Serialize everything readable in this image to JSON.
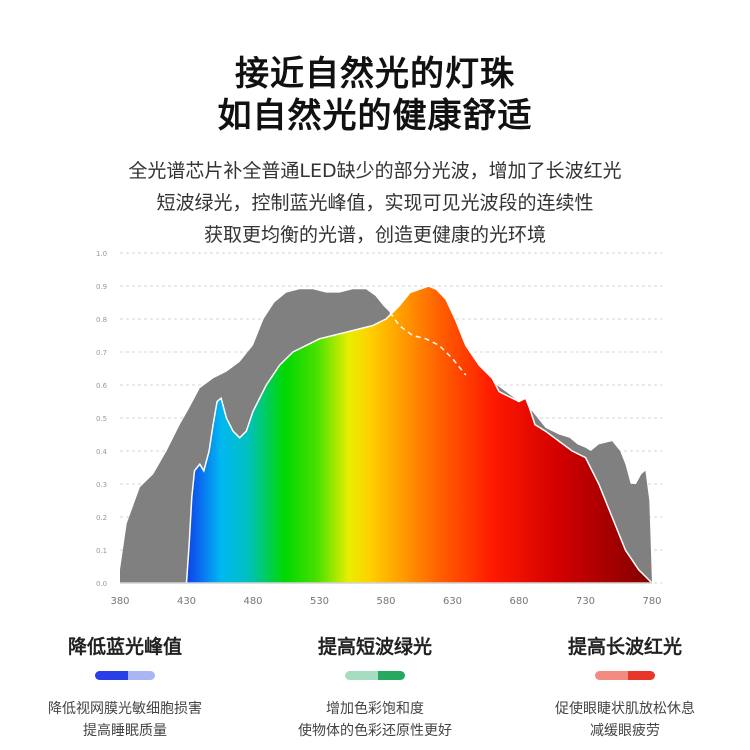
{
  "header": {
    "line1": "接近自然光的灯珠",
    "line2": "如自然光的健康舒适"
  },
  "description": {
    "line1": "全光谱芯片补全普通LED缺少的部分光波，增加了长波红光",
    "line2": "短波绿光，控制蓝光峰值，实现可见光波段的连续性",
    "line3": "获取更均衡的光谱，创造更健康的光环境"
  },
  "chart_data": {
    "type": "area",
    "title": "",
    "xlabel": "",
    "ylabel": "",
    "xlim": [
      380,
      780
    ],
    "ylim": [
      0,
      1.0
    ],
    "grid": true,
    "legend": "none",
    "x_ticks": [
      "380",
      "430",
      "480",
      "530",
      "580",
      "630",
      "680",
      "730",
      "780"
    ],
    "y_ticks": [
      "0.0",
      "0.1",
      "0.2",
      "0.3",
      "0.4",
      "0.5",
      "0.6",
      "0.7",
      "0.8",
      "0.9",
      "1.0"
    ],
    "series": [
      {
        "style": "gray-fill",
        "color": "#808080",
        "x": [
          380,
          385,
          395,
          405,
          415,
          425,
          432,
          440,
          450,
          460,
          470,
          480,
          488,
          496,
          505,
          515,
          525,
          535,
          545,
          555,
          565,
          572,
          578,
          583,
          590,
          600,
          610,
          620,
          630,
          640,
          645,
          650,
          660,
          670,
          680,
          690,
          700,
          710,
          718,
          724,
          730,
          734,
          740,
          750,
          756,
          760,
          764,
          768,
          772,
          775,
          778,
          780
        ],
        "y": [
          0.04,
          0.18,
          0.29,
          0.33,
          0.4,
          0.48,
          0.53,
          0.59,
          0.62,
          0.64,
          0.67,
          0.72,
          0.8,
          0.85,
          0.88,
          0.89,
          0.89,
          0.88,
          0.88,
          0.89,
          0.89,
          0.87,
          0.84,
          0.82,
          0.78,
          0.75,
          0.74,
          0.72,
          0.68,
          0.63,
          0.62,
          0.62,
          0.61,
          0.58,
          0.55,
          0.52,
          0.47,
          0.45,
          0.44,
          0.42,
          0.41,
          0.4,
          0.42,
          0.43,
          0.4,
          0.36,
          0.3,
          0.3,
          0.33,
          0.34,
          0.25,
          0.0
        ]
      },
      {
        "style": "spectrum-fill",
        "x": [
          380,
          430,
          432,
          434,
          436,
          438,
          440,
          443,
          447,
          450,
          453,
          456,
          460,
          465,
          470,
          475,
          480,
          490,
          500,
          510,
          520,
          530,
          540,
          550,
          560,
          570,
          575,
          580,
          590,
          598,
          605,
          612,
          618,
          625,
          632,
          640,
          650,
          660,
          665,
          670,
          675,
          680,
          685,
          688,
          692,
          700,
          710,
          720,
          730,
          740,
          750,
          760,
          770,
          780
        ],
        "y": [
          0.0,
          0.0,
          0.12,
          0.26,
          0.34,
          0.35,
          0.36,
          0.34,
          0.4,
          0.48,
          0.55,
          0.56,
          0.5,
          0.46,
          0.44,
          0.46,
          0.52,
          0.6,
          0.66,
          0.7,
          0.72,
          0.74,
          0.75,
          0.76,
          0.77,
          0.78,
          0.79,
          0.8,
          0.84,
          0.88,
          0.89,
          0.9,
          0.89,
          0.86,
          0.8,
          0.72,
          0.66,
          0.62,
          0.58,
          0.57,
          0.56,
          0.55,
          0.56,
          0.53,
          0.48,
          0.46,
          0.43,
          0.4,
          0.38,
          0.3,
          0.2,
          0.1,
          0.04,
          0.0
        ]
      },
      {
        "style": "dashed-gray-boundary",
        "color": "#ffffff",
        "x": [
          583,
          590,
          600,
          610,
          620,
          630,
          640
        ],
        "y": [
          0.82,
          0.78,
          0.75,
          0.74,
          0.72,
          0.68,
          0.63
        ]
      }
    ]
  },
  "features": [
    {
      "title": "降低蓝光峰值",
      "colors": [
        "#2a3ee8",
        "#a9b6f3"
      ],
      "desc_line1": "降低视网膜光敏细胞损害",
      "desc_line2": "提高睡眠质量"
    },
    {
      "title": "提高短波绿光",
      "colors": [
        "#a6dcc0",
        "#27a860"
      ],
      "desc_line1": "增加色彩饱和度",
      "desc_line2": "使物体的色彩还原性更好"
    },
    {
      "title": "提高长波红光",
      "colors": [
        "#f38c80",
        "#e8362a"
      ],
      "desc_line1": "促使眼睫状肌放松休息",
      "desc_line2": "减缓眼疲劳"
    }
  ]
}
